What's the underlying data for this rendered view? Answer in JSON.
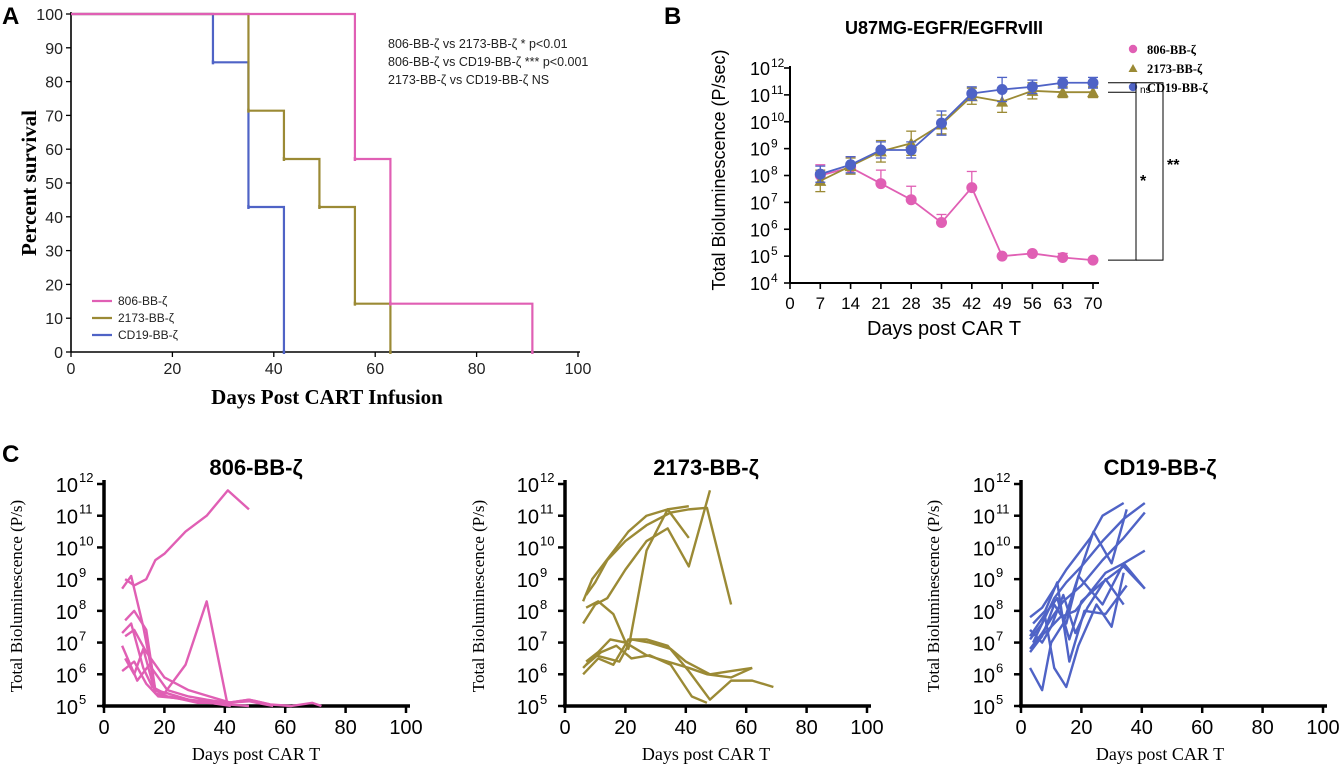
{
  "panel_labels": [
    "A",
    "B",
    "C"
  ],
  "colors": {
    "pink": "#e05fb4",
    "olive": "#9b8a35",
    "blue": "#4f63c6",
    "axis": "#000000"
  },
  "chart_data": [
    {
      "id": "A",
      "type": "line",
      "subtype": "kaplan-meier step",
      "title": "",
      "xlabel": "Days Post CART Infusion",
      "ylabel": "Percent survival",
      "xlim": [
        0,
        100
      ],
      "ylim": [
        0,
        100
      ],
      "xticks": [
        0,
        20,
        40,
        60,
        80,
        100
      ],
      "yticks": [
        0,
        10,
        20,
        30,
        40,
        50,
        60,
        70,
        80,
        90,
        100
      ],
      "legend_position": "bottom-left",
      "annotations": [
        "806-BB-ζ vs 2173-BB-ζ * p<0.01",
        "806-BB-ζ vs CD19-BB-ζ *** p<0.001",
        "2173-BB-ζ vs CD19-BB-ζ NS"
      ],
      "series": [
        {
          "name": "806-BB-ζ",
          "color": "#e05fb4",
          "x": [
            0,
            56,
            63,
            91
          ],
          "y": [
            100,
            57.1,
            14.3,
            0
          ]
        },
        {
          "name": "2173-BB-ζ",
          "color": "#9b8a35",
          "x": [
            0,
            35,
            42,
            49,
            56,
            63
          ],
          "y": [
            100,
            71.4,
            57.1,
            42.9,
            14.3,
            0
          ]
        },
        {
          "name": "CD19-BB-ζ",
          "color": "#4f63c6",
          "x": [
            0,
            28,
            35,
            42
          ],
          "y": [
            100,
            85.7,
            42.9,
            0
          ]
        }
      ]
    },
    {
      "id": "B",
      "type": "line",
      "title": "U87MG-EGFR/EGFRvIII",
      "xlabel": "Days post CAR T",
      "ylabel": "Total Bioluminescence (P/sec)",
      "xlim": [
        0,
        70
      ],
      "xticks": [
        0,
        7,
        14,
        21,
        28,
        35,
        42,
        49,
        56,
        63,
        70
      ],
      "yscale": "log10",
      "ylim_exp": [
        4,
        12
      ],
      "ytick_exps": [
        "4",
        "5",
        "6",
        "7",
        "8",
        "9",
        "10",
        "11",
        "12"
      ],
      "legend_position": "top-right",
      "significance": [
        "ns",
        "*",
        "**"
      ],
      "series": [
        {
          "name": "806-BB-ζ",
          "color": "#e05fb4",
          "marker": "circle",
          "x": [
            7,
            14,
            21,
            28,
            35,
            42,
            49,
            56,
            63,
            70
          ],
          "y_exp": [
            8.0,
            8.3,
            7.7,
            7.1,
            6.25,
            7.55,
            5.0,
            5.1,
            4.95,
            4.85
          ],
          "err_exp": [
            0.4,
            0.4,
            0.5,
            0.5,
            0.3,
            0.6,
            0,
            0,
            0.15,
            0
          ]
        },
        {
          "name": "2173-BB-ζ",
          "color": "#9b8a35",
          "marker": "triangle",
          "x": [
            7,
            14,
            21,
            28,
            35,
            42,
            49,
            56,
            63,
            70
          ],
          "y_exp": [
            7.8,
            8.35,
            8.9,
            9.2,
            9.9,
            10.95,
            10.75,
            11.15,
            11.1,
            11.1
          ],
          "err_exp": [
            0.4,
            0.3,
            0.4,
            0.45,
            0.35,
            0.3,
            0.4,
            0.3,
            0.2,
            0.2
          ]
        },
        {
          "name": "CD19-BB-ζ",
          "color": "#4f63c6",
          "marker": "circle",
          "x": [
            7,
            14,
            21,
            28,
            35,
            42,
            49,
            56,
            63,
            70
          ],
          "y_exp": [
            8.05,
            8.4,
            8.95,
            8.95,
            9.95,
            11.05,
            11.2,
            11.3,
            11.45,
            11.45
          ],
          "err_exp": [
            0.3,
            0.3,
            0.3,
            0.3,
            0.45,
            0.25,
            0.45,
            0.25,
            0.2,
            0.2
          ]
        }
      ]
    },
    {
      "id": "C1",
      "type": "line",
      "title": "806-BB-ζ",
      "xlabel": "Days post CAR T",
      "ylabel": "Total Bioluminescence (P/s)",
      "xlim": [
        0,
        100
      ],
      "xticks": [
        0,
        20,
        40,
        60,
        80,
        100
      ],
      "yscale": "log10",
      "ylim_exp": [
        5,
        12
      ],
      "ytick_exps": [
        "5",
        "6",
        "7",
        "8",
        "9",
        "10",
        "11",
        "12"
      ],
      "color": "#e05fb4",
      "series": [
        {
          "x": [
            7,
            10,
            14,
            17,
            20,
            27,
            34,
            41,
            48
          ],
          "y_exp": [
            9.0,
            8.8,
            9.0,
            9.6,
            9.8,
            10.5,
            11.0,
            11.8,
            11.2
          ]
        },
        {
          "x": [
            6,
            9,
            13,
            17,
            21,
            35,
            42
          ],
          "y_exp": [
            8.7,
            9.1,
            7.5,
            5.5,
            5.3,
            5.1,
            5.0
          ]
        },
        {
          "x": [
            7,
            10,
            14,
            17,
            21,
            28,
            34,
            41,
            48
          ],
          "y_exp": [
            7.7,
            8.0,
            7.4,
            5.5,
            5.4,
            5.2,
            5.1,
            5.05,
            5.0
          ]
        },
        {
          "x": [
            6,
            9,
            13,
            16,
            20,
            27,
            34,
            41
          ],
          "y_exp": [
            7.3,
            7.6,
            6.2,
            5.6,
            5.4,
            6.3,
            8.3,
            5.0
          ]
        },
        {
          "x": [
            7,
            10,
            13,
            17,
            20,
            27,
            34,
            41,
            48,
            55
          ],
          "y_exp": [
            6.5,
            6.0,
            6.8,
            5.4,
            5.3,
            5.2,
            5.15,
            5.1,
            5.2,
            5.05
          ]
        },
        {
          "x": [
            6,
            10,
            14,
            18,
            24,
            31,
            41,
            48,
            55,
            62,
            69,
            72
          ],
          "y_exp": [
            6.1,
            6.4,
            5.7,
            5.3,
            5.25,
            5.1,
            5.1,
            5.2,
            5.05,
            5.0,
            5.1,
            5.0
          ]
        },
        {
          "x": [
            7,
            10,
            14,
            20,
            28,
            35,
            42
          ],
          "y_exp": [
            7.2,
            7.4,
            6.7,
            5.9,
            5.5,
            5.3,
            5.1
          ]
        },
        {
          "x": [
            6,
            11,
            15,
            21,
            28,
            34,
            41,
            48,
            56
          ],
          "y_exp": [
            6.9,
            5.8,
            6.3,
            5.5,
            5.3,
            5.2,
            5.1,
            5.15,
            5.0
          ]
        }
      ]
    },
    {
      "id": "C2",
      "type": "line",
      "title": "2173-BB-ζ",
      "xlabel": "Days post CAR T",
      "ylabel": "Total Bioluminescence (P/s)",
      "xlim": [
        0,
        100
      ],
      "xticks": [
        0,
        20,
        40,
        60,
        80,
        100
      ],
      "yscale": "log10",
      "ylim_exp": [
        5,
        12
      ],
      "ytick_exps": [
        "5",
        "6",
        "7",
        "8",
        "9",
        "10",
        "11",
        "12"
      ],
      "color": "#9b8a35",
      "series": [
        {
          "x": [
            6,
            9,
            13,
            17,
            21,
            27,
            34,
            41
          ],
          "y_exp": [
            8.3,
            9.0,
            9.5,
            10.0,
            10.5,
            11.0,
            11.2,
            11.3
          ]
        },
        {
          "x": [
            7,
            10,
            14,
            20,
            27,
            35,
            41,
            47,
            55
          ],
          "y_exp": [
            8.5,
            8.9,
            9.6,
            10.2,
            10.7,
            11.1,
            11.2,
            11.25,
            8.2
          ]
        },
        {
          "x": [
            6,
            10,
            14,
            20,
            27,
            34,
            41,
            48
          ],
          "y_exp": [
            7.6,
            8.2,
            8.4,
            9.3,
            10.2,
            10.6,
            9.4,
            11.8
          ]
        },
        {
          "x": [
            7,
            11,
            16,
            21,
            27,
            34,
            41
          ],
          "y_exp": [
            8.1,
            8.3,
            7.9,
            6.8,
            9.9,
            11.2,
            10.3
          ]
        },
        {
          "x": [
            6,
            10,
            14,
            18,
            22,
            28,
            35,
            40,
            48,
            55,
            62
          ],
          "y_exp": [
            6.2,
            6.6,
            6.5,
            6.4,
            7.1,
            7.0,
            6.8,
            6.4,
            6.0,
            6.1,
            6.2
          ]
        },
        {
          "x": [
            7,
            11,
            15,
            20,
            27,
            34,
            41,
            47,
            55,
            62
          ],
          "y_exp": [
            6.4,
            6.7,
            7.1,
            7.0,
            6.6,
            6.4,
            6.2,
            6.0,
            5.9,
            6.2
          ]
        },
        {
          "x": [
            6,
            11,
            16,
            21,
            27,
            34,
            41,
            48,
            55,
            62,
            69
          ],
          "y_exp": [
            6.0,
            6.5,
            6.3,
            7.1,
            7.1,
            6.9,
            6.1,
            5.2,
            5.8,
            5.8,
            5.6
          ]
        },
        {
          "x": [
            7,
            12,
            17,
            22,
            28,
            35,
            42,
            47
          ],
          "y_exp": [
            6.3,
            6.7,
            6.9,
            6.5,
            6.6,
            6.3,
            5.3,
            5.1
          ]
        }
      ]
    },
    {
      "id": "C3",
      "type": "line",
      "title": "CD19-BB-ζ",
      "xlabel": "Days post CAR T",
      "ylabel": "Total Bioluminescence (P/s)",
      "xlim": [
        0,
        100
      ],
      "xticks": [
        0,
        20,
        40,
        60,
        80,
        100
      ],
      "yscale": "log10",
      "ylim_exp": [
        5,
        12
      ],
      "ytick_exps": [
        "5",
        "6",
        "7",
        "8",
        "9",
        "10",
        "11",
        "12"
      ],
      "color": "#4f63c6",
      "series": [
        {
          "x": [
            3,
            7,
            11,
            15,
            19,
            23,
            27,
            34
          ],
          "y_exp": [
            7.8,
            8.1,
            8.7,
            9.3,
            9.8,
            10.3,
            11.0,
            11.4
          ]
        },
        {
          "x": [
            3,
            7,
            11,
            15,
            20,
            27,
            34,
            41
          ],
          "y_exp": [
            7.1,
            7.6,
            8.4,
            8.9,
            9.4,
            10.2,
            10.9,
            11.4
          ]
        },
        {
          "x": [
            3,
            7,
            11,
            14,
            20,
            27,
            34,
            41
          ],
          "y_exp": [
            6.8,
            7.3,
            7.9,
            8.3,
            8.8,
            9.6,
            10.3,
            11.1
          ]
        },
        {
          "x": [
            3,
            8,
            12,
            16,
            20,
            27,
            34,
            41
          ],
          "y_exp": [
            7.2,
            7.9,
            8.4,
            7.1,
            8.3,
            8.9,
            9.4,
            8.7
          ]
        },
        {
          "x": [
            3,
            7,
            11,
            15,
            19,
            27,
            34,
            41
          ],
          "y_exp": [
            6.7,
            7.2,
            8.2,
            7.6,
            9.1,
            8.2,
            9.5,
            9.9
          ]
        },
        {
          "x": [
            4,
            8,
            12,
            16,
            21,
            28,
            35
          ],
          "y_exp": [
            7.6,
            8.0,
            8.9,
            6.4,
            8.0,
            7.9,
            8.8
          ]
        },
        {
          "x": [
            3,
            7,
            10,
            14,
            18,
            24,
            30,
            35
          ],
          "y_exp": [
            6.2,
            5.5,
            7.0,
            7.6,
            8.8,
            10.5,
            9.5,
            11.2
          ]
        },
        {
          "x": [
            4,
            8,
            11,
            15,
            19,
            25,
            30,
            34
          ],
          "y_exp": [
            7.0,
            7.8,
            6.2,
            5.6,
            6.9,
            8.2,
            7.5,
            9.2
          ]
        },
        {
          "x": [
            3,
            7,
            10,
            14,
            18,
            22,
            28,
            34
          ],
          "y_exp": [
            7.4,
            7.0,
            7.5,
            8.5,
            7.3,
            8.1,
            9.0,
            8.2
          ]
        },
        {
          "x": [
            4,
            9,
            13,
            18,
            23,
            28,
            34,
            41
          ],
          "y_exp": [
            7.0,
            7.4,
            7.8,
            8.0,
            8.6,
            9.2,
            9.5,
            8.7
          ]
        }
      ]
    }
  ]
}
